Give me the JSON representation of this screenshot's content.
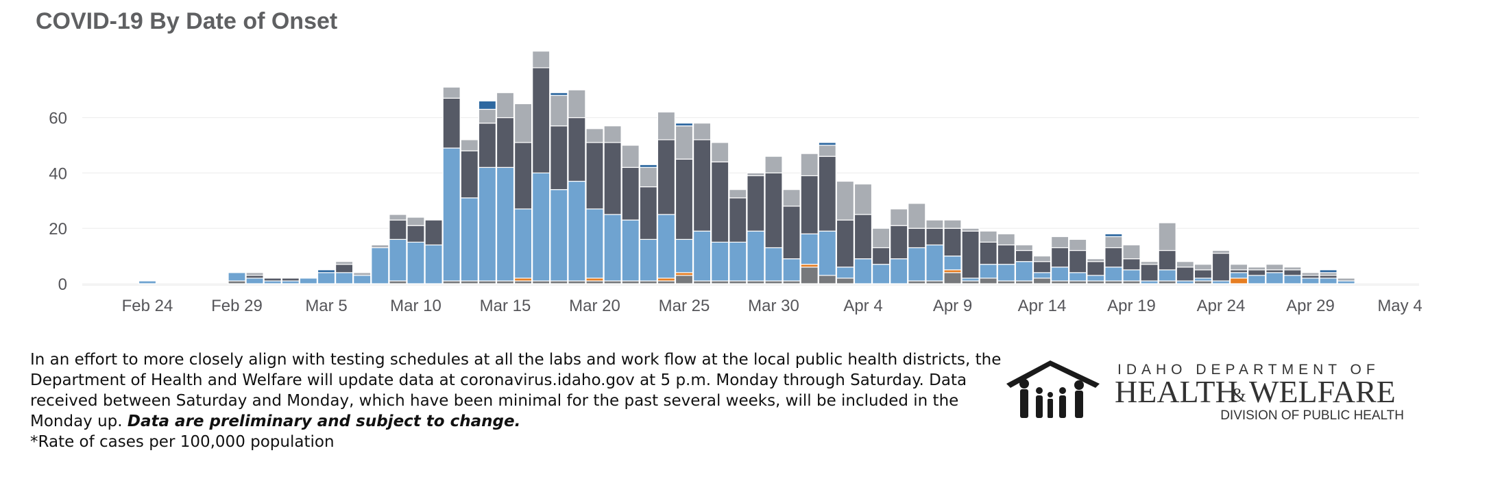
{
  "title": "COVID-19 By Date of Onset",
  "note": {
    "text": "In an effort to more closely align with testing schedules at all the labs and work flow at the local public health districts, the Department of Health and Welfare will update data at coronavirus.idaho.gov at 5 p.m. Monday through Saturday. Data received between Saturday and Monday, which have been minimal for the past several weeks, will be included in the Monday up.",
    "emphasis": "Data are preliminary and subject to change.",
    "footnote": "*Rate of cases per 100,000 population"
  },
  "logo": {
    "line1": "IDAHO DEPARTMENT OF",
    "line2a": "HEALTH",
    "amp": "&",
    "line2b": "WELFARE",
    "line3": "DIVISION OF PUBLIC HEALTH"
  },
  "chart_data": {
    "type": "bar",
    "stacked": true,
    "ylim": [
      -5,
      78
    ],
    "yticks": [
      0,
      20,
      40,
      60
    ],
    "grid": true,
    "legend": "none",
    "xticks": [
      "Feb 24",
      "Feb 29",
      "Mar 5",
      "Mar 10",
      "Mar 15",
      "Mar 20",
      "Mar 25",
      "Mar 30",
      "Apr 4",
      "Apr 9",
      "Apr 14",
      "Apr 19",
      "Apr 24",
      "Apr 29",
      "May 4"
    ],
    "colors": [
      "#77797c",
      "#e67e22",
      "#6fa3d0",
      "#565a66",
      "#a9adb3",
      "#2e68a0"
    ],
    "categories": [
      "Feb 24",
      "Feb 25",
      "Feb 26",
      "Feb 27",
      "Feb 28",
      "Feb 29",
      "Mar 1",
      "Mar 2",
      "Mar 3",
      "Mar 4",
      "Mar 5",
      "Mar 6",
      "Mar 7",
      "Mar 8",
      "Mar 9",
      "Mar 10",
      "Mar 11",
      "Mar 12",
      "Mar 13",
      "Mar 14",
      "Mar 15",
      "Mar 16",
      "Mar 17",
      "Mar 18",
      "Mar 19",
      "Mar 20",
      "Mar 21",
      "Mar 22",
      "Mar 23",
      "Mar 24",
      "Mar 25",
      "Mar 26",
      "Mar 27",
      "Mar 28",
      "Mar 29",
      "Mar 30",
      "Mar 31",
      "Apr 1",
      "Apr 2",
      "Apr 3",
      "Apr 4",
      "Apr 5",
      "Apr 6",
      "Apr 7",
      "Apr 8",
      "Apr 9",
      "Apr 10",
      "Apr 11",
      "Apr 12",
      "Apr 13",
      "Apr 14",
      "Apr 15",
      "Apr 16",
      "Apr 17",
      "Apr 18",
      "Apr 19",
      "Apr 20",
      "Apr 21",
      "Apr 22",
      "Apr 23",
      "Apr 24",
      "Apr 25",
      "Apr 26",
      "Apr 27",
      "Apr 28",
      "Apr 29",
      "Apr 30",
      "May 1"
    ],
    "series": [
      {
        "values": [
          0,
          0,
          0,
          0,
          0,
          1,
          0,
          0,
          0,
          0,
          0,
          0,
          0,
          0,
          1,
          0,
          0,
          1,
          1,
          1,
          1,
          1,
          1,
          1,
          1,
          1,
          1,
          1,
          1,
          1,
          3,
          1,
          1,
          1,
          1,
          1,
          1,
          6,
          3,
          2,
          0,
          0,
          0,
          1,
          1,
          4,
          1,
          2,
          1,
          1,
          2,
          1,
          1,
          1,
          1,
          1,
          0,
          1,
          0,
          1,
          0,
          0,
          0,
          0,
          0,
          0,
          0,
          0
        ]
      },
      {
        "values": [
          0,
          0,
          0,
          0,
          0,
          0,
          0,
          0,
          0,
          0,
          0,
          0,
          0,
          0,
          0,
          0,
          0,
          0,
          0,
          0,
          0,
          1,
          0,
          0,
          0,
          1,
          0,
          0,
          0,
          1,
          1,
          0,
          0,
          0,
          0,
          0,
          0,
          1,
          0,
          0,
          0,
          0,
          0,
          0,
          0,
          1,
          0,
          0,
          0,
          0,
          0,
          0,
          0,
          0,
          0,
          0,
          0,
          0,
          0,
          0,
          0,
          2,
          0,
          0,
          0,
          0,
          0,
          0
        ]
      },
      {
        "values": [
          1,
          0,
          0,
          0,
          0,
          3,
          2,
          1,
          1,
          2,
          4,
          4,
          3,
          13,
          15,
          15,
          14,
          48,
          30,
          41,
          41,
          25,
          39,
          33,
          36,
          25,
          24,
          22,
          15,
          23,
          12,
          18,
          14,
          14,
          18,
          12,
          8,
          11,
          16,
          4,
          9,
          7,
          9,
          12,
          13,
          5,
          1,
          5,
          6,
          7,
          2,
          5,
          3,
          2,
          5,
          4,
          1,
          4,
          1,
          1,
          1,
          2,
          3,
          4,
          3,
          2,
          2,
          1
        ]
      },
      {
        "values": [
          0,
          0,
          0,
          0,
          0,
          0,
          1,
          1,
          1,
          0,
          0,
          3,
          0,
          0,
          7,
          6,
          9,
          18,
          17,
          16,
          18,
          24,
          38,
          23,
          23,
          24,
          26,
          19,
          19,
          27,
          29,
          33,
          29,
          16,
          20,
          27,
          19,
          21,
          27,
          17,
          16,
          6,
          12,
          7,
          6,
          10,
          17,
          8,
          7,
          4,
          4,
          7,
          8,
          5,
          7,
          4,
          6,
          7,
          5,
          3,
          10,
          1,
          2,
          1,
          2,
          1,
          1,
          0
        ]
      },
      {
        "values": [
          0,
          0,
          0,
          0,
          0,
          0,
          1,
          0,
          0,
          0,
          0,
          1,
          1,
          1,
          2,
          3,
          0,
          4,
          4,
          5,
          9,
          14,
          6,
          11,
          10,
          5,
          6,
          8,
          7,
          10,
          12,
          6,
          7,
          3,
          1,
          6,
          6,
          8,
          4,
          14,
          11,
          7,
          6,
          9,
          3,
          3,
          1,
          4,
          4,
          2,
          2,
          4,
          4,
          1,
          4,
          5,
          1,
          10,
          2,
          2,
          1,
          2,
          1,
          2,
          1,
          1,
          1,
          1
        ]
      },
      {
        "values": [
          0,
          0,
          0,
          0,
          0,
          0,
          0,
          0,
          0,
          0,
          1,
          0,
          0,
          0,
          0,
          0,
          0,
          0,
          0,
          3,
          0,
          0,
          0,
          1,
          0,
          0,
          0,
          0,
          1,
          0,
          1,
          0,
          0,
          0,
          0,
          0,
          0,
          0,
          1,
          0,
          0,
          0,
          0,
          0,
          0,
          0,
          0,
          0,
          0,
          0,
          0,
          0,
          0,
          0,
          1,
          0,
          0,
          0,
          0,
          0,
          0,
          0,
          0,
          0,
          0,
          0,
          1,
          0
        ]
      }
    ]
  }
}
